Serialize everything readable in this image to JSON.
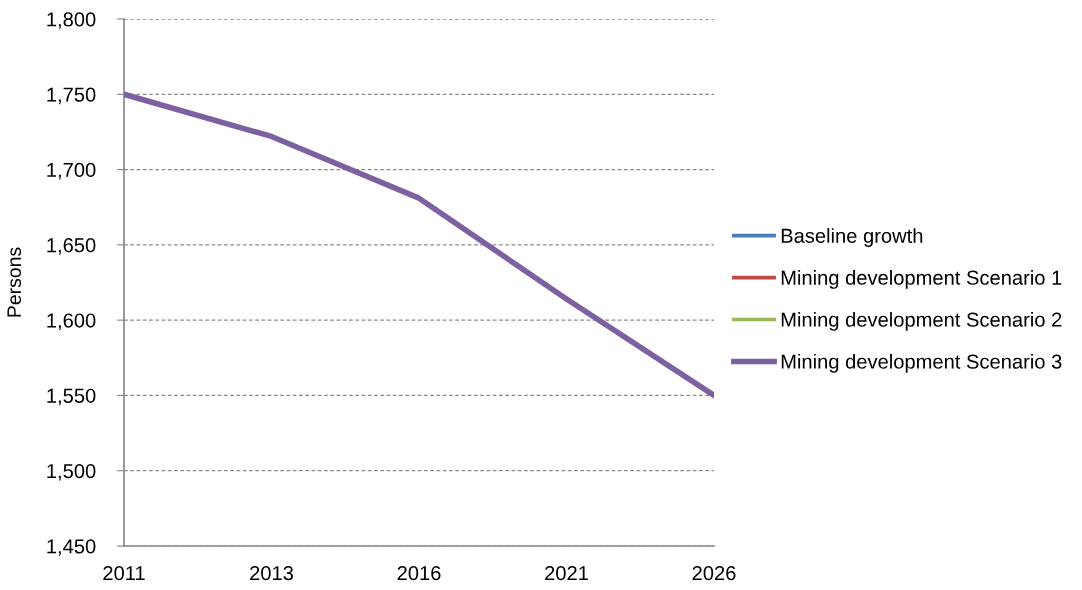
{
  "chart_data": {
    "type": "line",
    "ylabel": "Persons",
    "categories": [
      "2011",
      "2013",
      "2016",
      "2021",
      "2026"
    ],
    "series": [
      {
        "name": "Baseline growth",
        "color": "#4a7ebb",
        "values": [
          null,
          null,
          null,
          null,
          null
        ]
      },
      {
        "name": "Mining development Scenario 1",
        "color": "#be4b48",
        "values": [
          null,
          null,
          null,
          null,
          null
        ]
      },
      {
        "name": "Mining development Scenario 2",
        "color": "#98b954",
        "values": [
          null,
          null,
          null,
          null,
          null
        ]
      },
      {
        "name": "Mining development Scenario 3",
        "color": "#7d60a0",
        "values": [
          1750,
          1722,
          1681,
          1614,
          1550
        ]
      }
    ],
    "ylim": [
      1450,
      1800
    ],
    "yticks": [
      {
        "value": 1450,
        "label": "1,450"
      },
      {
        "value": 1500,
        "label": "1,500"
      },
      {
        "value": 1550,
        "label": "1,550"
      },
      {
        "value": 1600,
        "label": "1,600"
      },
      {
        "value": 1650,
        "label": "1,650"
      },
      {
        "value": 1700,
        "label": "1,700"
      },
      {
        "value": 1750,
        "label": "1,750"
      },
      {
        "value": 1800,
        "label": "1,800"
      }
    ],
    "grid": "y",
    "legend": "right",
    "marker": "none",
    "line_style": "solid"
  }
}
